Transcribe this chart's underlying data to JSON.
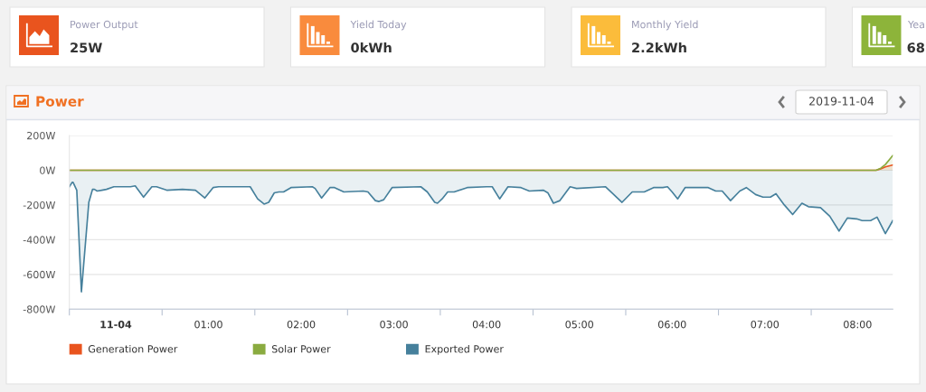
{
  "chart_data": [
    {
      "type": "other",
      "annotations": [
        "Power Output",
        "25W",
        "Yield Today",
        "0kWh",
        "Monthly Yield",
        "2.2kWh",
        "Yea",
        "68"
      ]
    },
    {
      "type": "area",
      "title": "Power",
      "annotations": [
        "2019-11-04"
      ],
      "series": [
        {
          "name": "Generation Power",
          "color": "#e9541e",
          "x": [
            -0.5,
            8.2,
            8.25,
            8.3,
            8.38
          ],
          "values": [
            0,
            0,
            8,
            19,
            30
          ]
        },
        {
          "name": "Solar Power",
          "color": "#8aab40",
          "x": [
            -0.5,
            8.2,
            8.25,
            8.3,
            8.38
          ],
          "values": [
            0,
            0,
            12,
            33,
            85
          ]
        },
        {
          "name": "Exported Power",
          "color": "#46809c",
          "x": [
            -0.5,
            -0.47,
            -0.46,
            -0.42,
            -0.37,
            -0.29,
            -0.25,
            -0.23,
            -0.2,
            -0.15,
            -0.1,
            -0.02,
            0.16,
            0.21,
            0.3,
            0.39,
            0.44,
            0.55,
            0.72,
            0.86,
            0.96,
            1.05,
            1.11,
            1.45,
            1.53,
            1.6,
            1.65,
            1.71,
            1.76,
            1.81,
            1.89,
            2.12,
            2.15,
            2.22,
            2.31,
            2.36,
            2.46,
            2.67,
            2.72,
            2.8,
            2.84,
            2.89,
            2.98,
            3.29,
            3.36,
            3.44,
            3.47,
            3.52,
            3.58,
            3.65,
            3.79,
            4.0,
            4.06,
            4.14,
            4.23,
            4.37,
            4.46,
            4.61,
            4.66,
            4.72,
            4.79,
            4.9,
            4.97,
            5.28,
            5.35,
            5.46,
            5.57,
            5.7,
            5.8,
            5.9,
            5.95,
            6.0,
            6.06,
            6.14,
            6.39,
            6.47,
            6.54,
            6.63,
            6.73,
            6.8,
            6.9,
            6.98,
            7.06,
            7.12,
            7.21,
            7.3,
            7.4,
            7.47,
            7.6,
            7.7,
            7.8,
            7.89,
            7.99,
            8.05,
            8.14,
            8.21,
            8.3,
            8.38
          ],
          "values": [
            -95,
            -70,
            -70,
            -115,
            -700,
            -185,
            -110,
            -110,
            -120,
            -115,
            -110,
            -95,
            -95,
            -90,
            -155,
            -95,
            -95,
            -115,
            -110,
            -115,
            -160,
            -100,
            -95,
            -95,
            -165,
            -195,
            -185,
            -130,
            -125,
            -125,
            -100,
            -95,
            -105,
            -160,
            -100,
            -100,
            -125,
            -120,
            -125,
            -175,
            -180,
            -170,
            -100,
            -95,
            -125,
            -185,
            -190,
            -165,
            -125,
            -125,
            -100,
            -95,
            -95,
            -165,
            -95,
            -100,
            -120,
            -115,
            -130,
            -190,
            -175,
            -95,
            -105,
            -95,
            -130,
            -185,
            -125,
            -125,
            -100,
            -100,
            -95,
            -125,
            -165,
            -100,
            -100,
            -120,
            -120,
            -175,
            -120,
            -100,
            -140,
            -155,
            -155,
            -135,
            -200,
            -255,
            -190,
            -210,
            -215,
            -265,
            -350,
            -275,
            -280,
            -290,
            -290,
            -270,
            -365,
            -290
          ]
        }
      ],
      "xlim": [
        -0.5,
        8.38
      ],
      "xticks": [
        {
          "value": -0.5,
          "label": null
        },
        {
          "value": 0,
          "label": "11-04"
        },
        {
          "value": 0.5,
          "label": null
        },
        {
          "value": 1,
          "label": "01:00"
        },
        {
          "value": 1.5,
          "label": null
        },
        {
          "value": 2,
          "label": "02:00"
        },
        {
          "value": 2.5,
          "label": null
        },
        {
          "value": 3,
          "label": "03:00"
        },
        {
          "value": 3.5,
          "label": null
        },
        {
          "value": 4,
          "label": "04:00"
        },
        {
          "value": 4.5,
          "label": null
        },
        {
          "value": 5,
          "label": "05:00"
        },
        {
          "value": 5.5,
          "label": null
        },
        {
          "value": 6,
          "label": "06:00"
        },
        {
          "value": 6.5,
          "label": null
        },
        {
          "value": 7,
          "label": "07:00"
        },
        {
          "value": 7.5,
          "label": null
        },
        {
          "value": 8,
          "label": "08:00"
        }
      ],
      "ylim": [
        -800,
        200
      ],
      "yticks": [
        {
          "value": 200,
          "label": "200W"
        },
        {
          "value": 0,
          "label": "0W"
        },
        {
          "value": -200,
          "label": "-200W"
        },
        {
          "value": -400,
          "label": "-400W"
        },
        {
          "value": -600,
          "label": "-600W"
        },
        {
          "value": -800,
          "label": "-800W"
        }
      ],
      "grid": "y",
      "legend": "bottom"
    }
  ]
}
